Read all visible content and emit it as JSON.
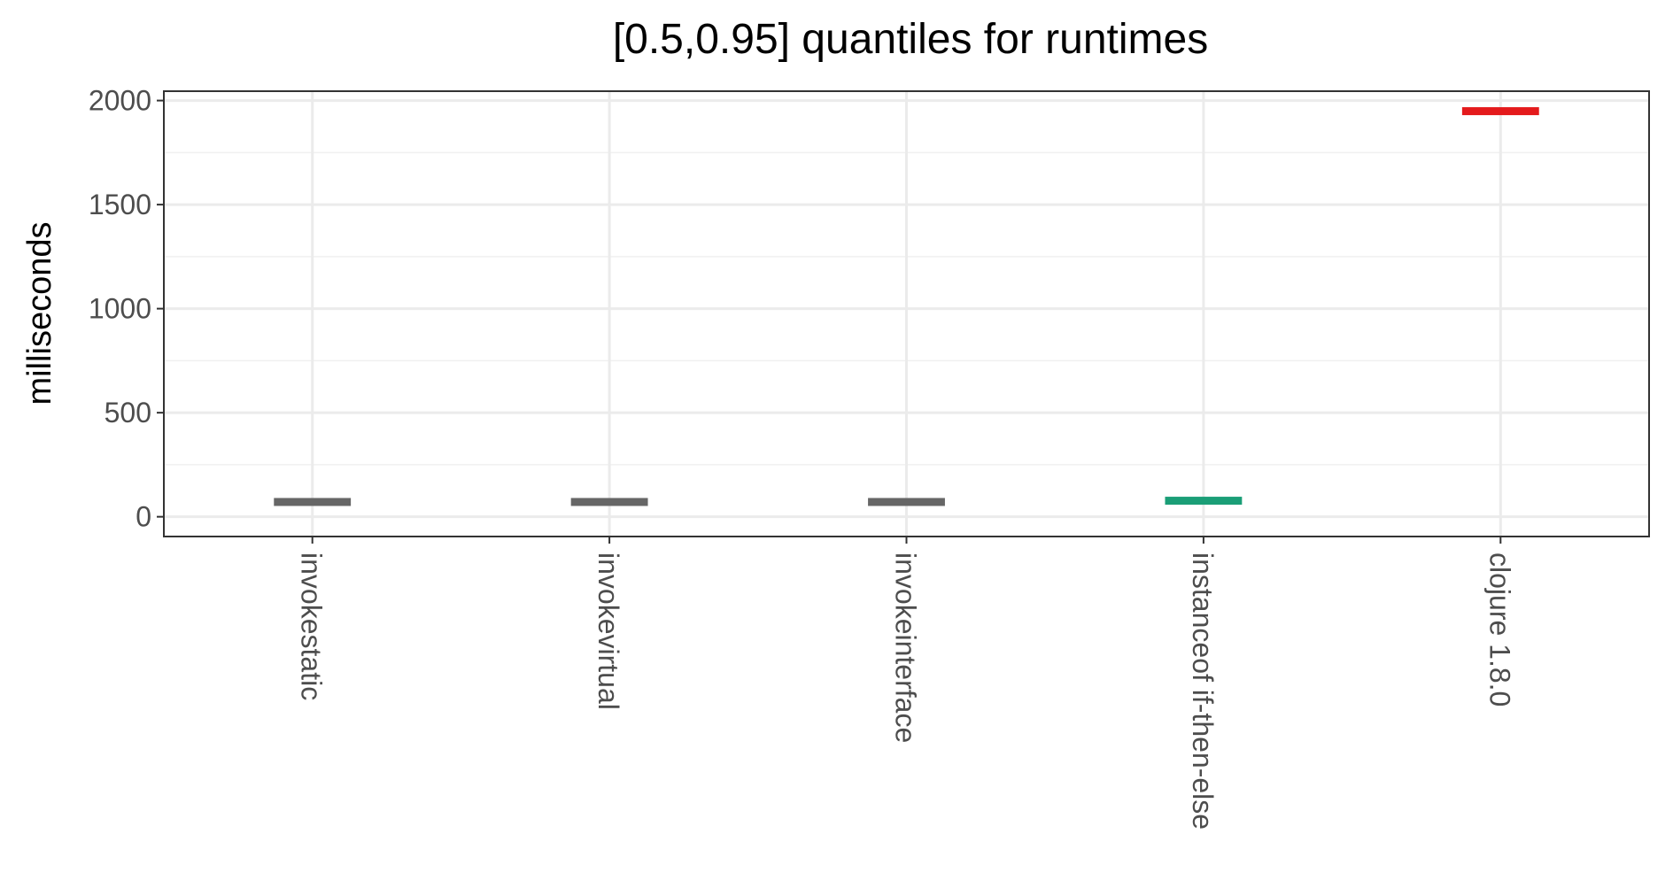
{
  "chart_data": {
    "type": "crossbar",
    "title": "[0.5,0.95] quantiles for runtimes",
    "xlabel": "",
    "ylabel": "milliseconds",
    "ylim": [
      -95,
      2045
    ],
    "yticks": [
      0,
      500,
      1000,
      1500,
      2000
    ],
    "grid": true,
    "legend": "none",
    "categories": [
      "invokestatic",
      "invokevirtual",
      "invokeinterface",
      "instanceof if-then-else",
      "clojure 1.8.0"
    ],
    "series": [
      {
        "values": [
          {
            "q50": 66,
            "q95": 76,
            "color": "#666666"
          },
          {
            "q50": 66,
            "q95": 76,
            "color": "#666666"
          },
          {
            "q50": 66,
            "q95": 76,
            "color": "#666666"
          },
          {
            "q50": 72,
            "q95": 82,
            "color": "#1b9e77"
          },
          {
            "q50": 1943,
            "q95": 1955,
            "color": "#e41a1c"
          }
        ]
      }
    ]
  }
}
